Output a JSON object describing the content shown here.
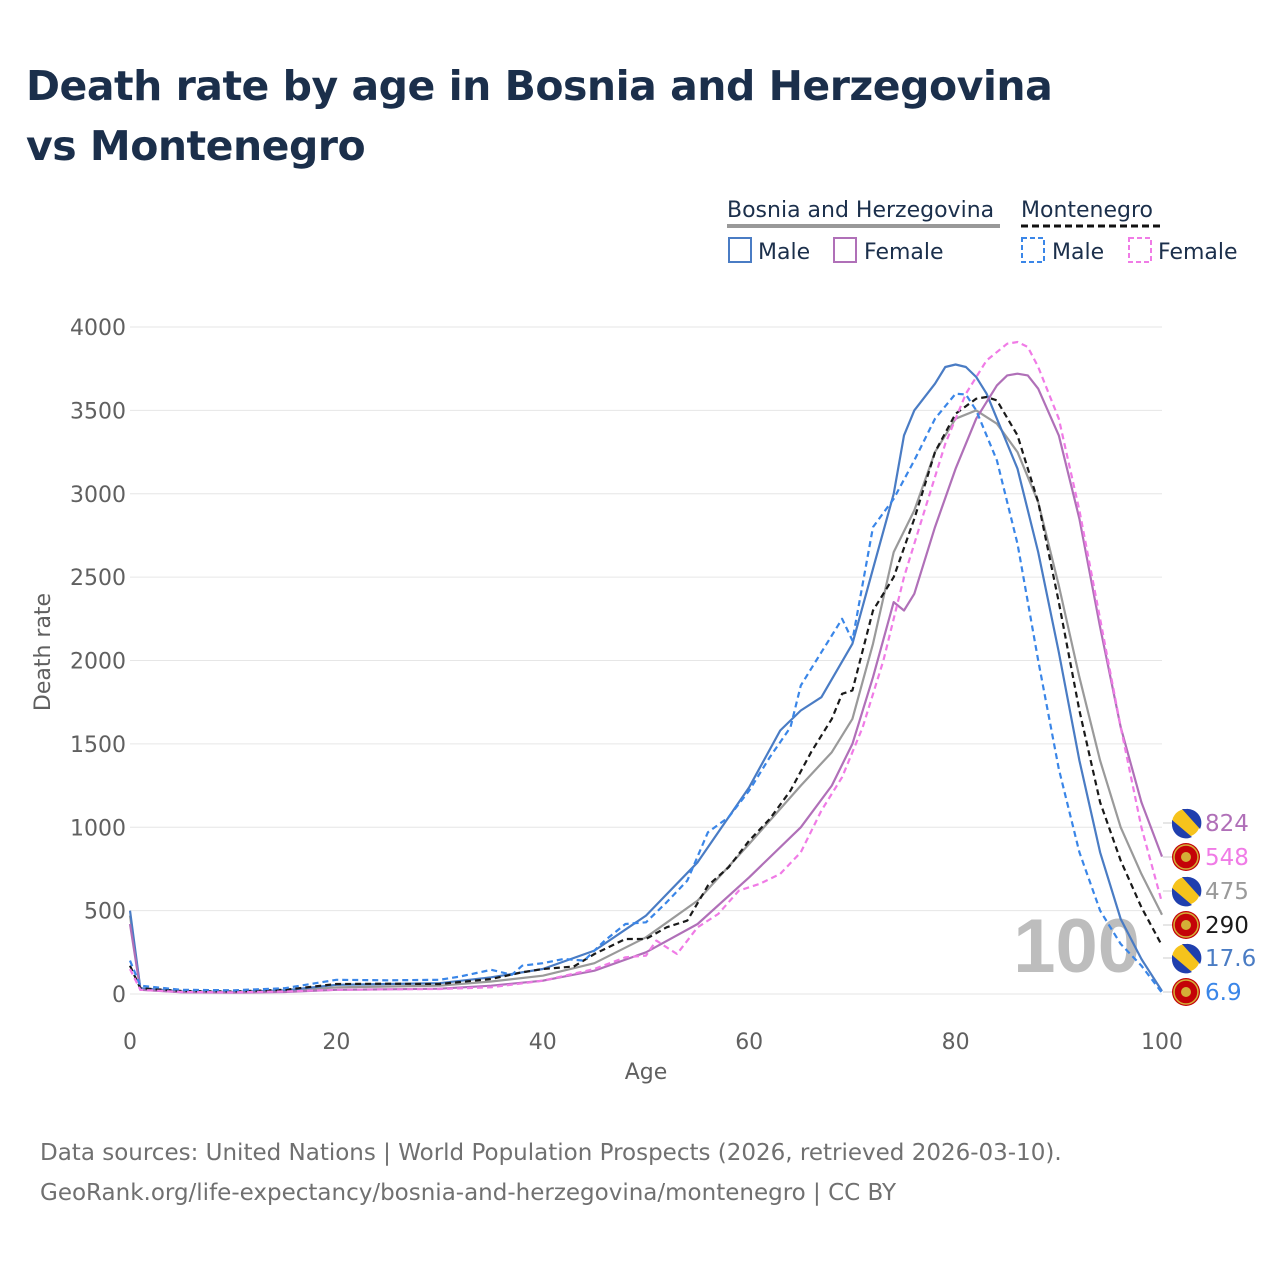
{
  "title": "Death rate by age in Bosnia and Herzegovina vs Montenegro",
  "footer": {
    "sources": "Data sources: United Nations | World Population Prospects (2026, retrieved 2026-03-10).",
    "url": "GeoRank.org/life-expectancy/bosnia-and-herzegovina/montenegro | CC BY"
  },
  "legend": {
    "groups": [
      {
        "name": "Bosnia and Herzegovina",
        "style": "solid",
        "entries": [
          "Male",
          "Female"
        ]
      },
      {
        "name": "Montenegro",
        "style": "dashed",
        "entries": [
          "Male",
          "Female"
        ]
      }
    ]
  },
  "watermark": "100",
  "colors": {
    "bih_male": "#4a7cc4",
    "bih_female": "#b070b8",
    "bih_total": "#9a9a9a",
    "mne_male": "#3a86e8",
    "mne_female": "#f07be6",
    "mne_total": "#1a1a1a",
    "title": "#1b2f4b",
    "axis_text": "#606060"
  },
  "end_labels": [
    {
      "value": "824",
      "series": "bih_female",
      "flag": "bih"
    },
    {
      "value": "548",
      "series": "mne_female",
      "flag": "mne"
    },
    {
      "value": "475",
      "series": "bih_total",
      "flag": "bih"
    },
    {
      "value": "290",
      "series": "mne_total",
      "flag": "mne"
    },
    {
      "value": "17.6",
      "series": "bih_male",
      "flag": "bih"
    },
    {
      "value": "6.9",
      "series": "mne_male",
      "flag": "mne"
    }
  ],
  "chart_data": {
    "type": "line",
    "title": "Death rate by age in Bosnia and Herzegovina vs Montenegro",
    "xlabel": "Age",
    "ylabel": "Death rate",
    "xlim": [
      0,
      100
    ],
    "ylim": [
      0,
      4000
    ],
    "xticks": [
      0,
      20,
      40,
      60,
      80,
      100
    ],
    "yticks": [
      0,
      500,
      1000,
      1500,
      2000,
      2500,
      3000,
      3500,
      4000
    ],
    "grid": true,
    "legend_position": "top-right",
    "series": [
      {
        "key": "bih_total",
        "name": "Bosnia and Herzegovina",
        "dashed": false,
        "points": [
          [
            0,
            470
          ],
          [
            1,
            30
          ],
          [
            5,
            12
          ],
          [
            10,
            10
          ],
          [
            15,
            18
          ],
          [
            20,
            40
          ],
          [
            25,
            45
          ],
          [
            30,
            50
          ],
          [
            35,
            75
          ],
          [
            40,
            110
          ],
          [
            45,
            185
          ],
          [
            50,
            340
          ],
          [
            55,
            560
          ],
          [
            60,
            900
          ],
          [
            65,
            1250
          ],
          [
            68,
            1450
          ],
          [
            70,
            1650
          ],
          [
            72,
            2100
          ],
          [
            74,
            2650
          ],
          [
            76,
            2900
          ],
          [
            78,
            3250
          ],
          [
            80,
            3450
          ],
          [
            82,
            3500
          ],
          [
            84,
            3420
          ],
          [
            86,
            3250
          ],
          [
            88,
            2950
          ],
          [
            90,
            2450
          ],
          [
            92,
            1900
          ],
          [
            94,
            1400
          ],
          [
            96,
            1000
          ],
          [
            98,
            720
          ],
          [
            100,
            475
          ]
        ]
      },
      {
        "key": "bih_male",
        "name": "Male (Bosnia and Herzegovina)",
        "dashed": false,
        "points": [
          [
            0,
            500
          ],
          [
            1,
            35
          ],
          [
            5,
            15
          ],
          [
            10,
            12
          ],
          [
            15,
            22
          ],
          [
            20,
            55
          ],
          [
            25,
            60
          ],
          [
            30,
            65
          ],
          [
            35,
            100
          ],
          [
            40,
            150
          ],
          [
            45,
            260
          ],
          [
            50,
            470
          ],
          [
            55,
            790
          ],
          [
            60,
            1240
          ],
          [
            63,
            1580
          ],
          [
            65,
            1700
          ],
          [
            67,
            1780
          ],
          [
            70,
            2100
          ],
          [
            72,
            2550
          ],
          [
            74,
            3000
          ],
          [
            75,
            3350
          ],
          [
            76,
            3500
          ],
          [
            78,
            3660
          ],
          [
            79,
            3760
          ],
          [
            80,
            3775
          ],
          [
            81,
            3760
          ],
          [
            82,
            3700
          ],
          [
            83,
            3600
          ],
          [
            84,
            3450
          ],
          [
            86,
            3150
          ],
          [
            88,
            2650
          ],
          [
            90,
            2050
          ],
          [
            92,
            1400
          ],
          [
            94,
            850
          ],
          [
            96,
            450
          ],
          [
            98,
            210
          ],
          [
            100,
            17.6
          ]
        ]
      },
      {
        "key": "bih_female",
        "name": "Female (Bosnia and Herzegovina)",
        "dashed": false,
        "points": [
          [
            0,
            420
          ],
          [
            1,
            25
          ],
          [
            5,
            10
          ],
          [
            10,
            8
          ],
          [
            15,
            12
          ],
          [
            20,
            25
          ],
          [
            25,
            28
          ],
          [
            30,
            32
          ],
          [
            35,
            50
          ],
          [
            40,
            80
          ],
          [
            45,
            140
          ],
          [
            50,
            250
          ],
          [
            55,
            420
          ],
          [
            60,
            700
          ],
          [
            65,
            1000
          ],
          [
            68,
            1250
          ],
          [
            70,
            1500
          ],
          [
            72,
            1900
          ],
          [
            74,
            2350
          ],
          [
            75,
            2300
          ],
          [
            76,
            2400
          ],
          [
            78,
            2800
          ],
          [
            80,
            3150
          ],
          [
            82,
            3450
          ],
          [
            84,
            3650
          ],
          [
            85,
            3710
          ],
          [
            86,
            3720
          ],
          [
            87,
            3710
          ],
          [
            88,
            3630
          ],
          [
            90,
            3350
          ],
          [
            92,
            2850
          ],
          [
            94,
            2200
          ],
          [
            96,
            1600
          ],
          [
            98,
            1150
          ],
          [
            100,
            824
          ]
        ]
      },
      {
        "key": "mne_total",
        "name": "Montenegro",
        "dashed": true,
        "points": [
          [
            0,
            170
          ],
          [
            1,
            35
          ],
          [
            5,
            18
          ],
          [
            10,
            15
          ],
          [
            15,
            25
          ],
          [
            20,
            60
          ],
          [
            25,
            62
          ],
          [
            30,
            60
          ],
          [
            35,
            90
          ],
          [
            38,
            130
          ],
          [
            40,
            150
          ],
          [
            43,
            165
          ],
          [
            45,
            240
          ],
          [
            48,
            330
          ],
          [
            50,
            330
          ],
          [
            52,
            400
          ],
          [
            54,
            440
          ],
          [
            56,
            650
          ],
          [
            58,
            760
          ],
          [
            60,
            920
          ],
          [
            62,
            1050
          ],
          [
            64,
            1220
          ],
          [
            66,
            1450
          ],
          [
            68,
            1650
          ],
          [
            69,
            1800
          ],
          [
            70,
            1820
          ],
          [
            72,
            2300
          ],
          [
            74,
            2500
          ],
          [
            76,
            2850
          ],
          [
            78,
            3250
          ],
          [
            80,
            3480
          ],
          [
            82,
            3570
          ],
          [
            83,
            3580
          ],
          [
            84,
            3560
          ],
          [
            86,
            3350
          ],
          [
            88,
            2950
          ],
          [
            90,
            2350
          ],
          [
            92,
            1700
          ],
          [
            94,
            1150
          ],
          [
            96,
            800
          ],
          [
            98,
            520
          ],
          [
            100,
            290
          ]
        ]
      },
      {
        "key": "mne_male",
        "name": "Male (Montenegro)",
        "dashed": true,
        "points": [
          [
            0,
            200
          ],
          [
            1,
            50
          ],
          [
            5,
            25
          ],
          [
            10,
            22
          ],
          [
            15,
            35
          ],
          [
            20,
            85
          ],
          [
            25,
            82
          ],
          [
            30,
            85
          ],
          [
            32,
            105
          ],
          [
            35,
            145
          ],
          [
            37,
            115
          ],
          [
            38,
            170
          ],
          [
            40,
            185
          ],
          [
            42,
            210
          ],
          [
            44,
            200
          ],
          [
            46,
            320
          ],
          [
            48,
            420
          ],
          [
            50,
            430
          ],
          [
            52,
            550
          ],
          [
            54,
            680
          ],
          [
            56,
            970
          ],
          [
            58,
            1060
          ],
          [
            60,
            1220
          ],
          [
            62,
            1420
          ],
          [
            64,
            1600
          ],
          [
            65,
            1850
          ],
          [
            66,
            1950
          ],
          [
            67,
            2050
          ],
          [
            68,
            2150
          ],
          [
            69,
            2250
          ],
          [
            70,
            2120
          ],
          [
            72,
            2800
          ],
          [
            74,
            2970
          ],
          [
            76,
            3200
          ],
          [
            78,
            3450
          ],
          [
            80,
            3600
          ],
          [
            81,
            3595
          ],
          [
            82,
            3500
          ],
          [
            84,
            3200
          ],
          [
            86,
            2700
          ],
          [
            88,
            2000
          ],
          [
            90,
            1350
          ],
          [
            92,
            850
          ],
          [
            94,
            500
          ],
          [
            96,
            300
          ],
          [
            98,
            170
          ],
          [
            100,
            6.9
          ]
        ]
      },
      {
        "key": "mne_female",
        "name": "Female (Montenegro)",
        "dashed": true,
        "points": [
          [
            0,
            150
          ],
          [
            1,
            25
          ],
          [
            5,
            12
          ],
          [
            10,
            10
          ],
          [
            15,
            15
          ],
          [
            20,
            25
          ],
          [
            25,
            28
          ],
          [
            30,
            30
          ],
          [
            35,
            40
          ],
          [
            40,
            80
          ],
          [
            45,
            150
          ],
          [
            48,
            220
          ],
          [
            50,
            230
          ],
          [
            51,
            320
          ],
          [
            53,
            240
          ],
          [
            55,
            400
          ],
          [
            57,
            480
          ],
          [
            59,
            620
          ],
          [
            61,
            660
          ],
          [
            63,
            720
          ],
          [
            65,
            850
          ],
          [
            67,
            1100
          ],
          [
            69,
            1300
          ],
          [
            71,
            1600
          ],
          [
            73,
            2000
          ],
          [
            75,
            2500
          ],
          [
            77,
            2900
          ],
          [
            79,
            3300
          ],
          [
            81,
            3600
          ],
          [
            83,
            3800
          ],
          [
            85,
            3900
          ],
          [
            86,
            3910
          ],
          [
            87,
            3880
          ],
          [
            88,
            3760
          ],
          [
            90,
            3450
          ],
          [
            92,
            2900
          ],
          [
            94,
            2250
          ],
          [
            96,
            1600
          ],
          [
            98,
            1000
          ],
          [
            100,
            548
          ]
        ]
      }
    ]
  }
}
